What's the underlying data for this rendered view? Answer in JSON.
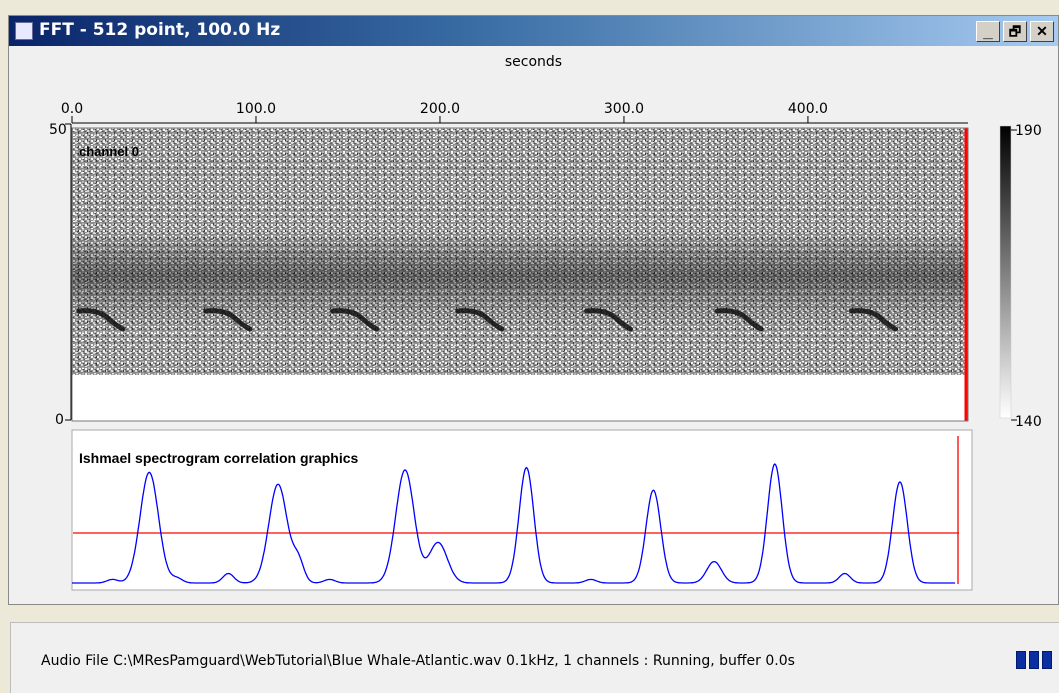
{
  "window": {
    "title": "FFT - 512 point, 100.0 Hz",
    "buttons": {
      "minimize": "_",
      "restore": "🗗",
      "close": "✕"
    }
  },
  "spectrogram": {
    "x_axis_label": "seconds",
    "x_ticks": [
      "0.0",
      "100.0",
      "200.0",
      "300.0",
      "400.0"
    ],
    "x_tick_values": [
      0,
      100,
      200,
      300,
      400
    ],
    "x_range": [
      0,
      487
    ],
    "y_ticks": [
      "50",
      "0"
    ],
    "y_range": [
      0,
      50
    ],
    "panel_label": "channel 0",
    "colorbar": {
      "max_label": "190",
      "min_label": "140",
      "max": 190,
      "min": 140
    },
    "calls_at_seconds": [
      20,
      89,
      158,
      226,
      296,
      367,
      440
    ],
    "cursor_seconds": 487,
    "colors": {
      "cursor": "#ff0000"
    }
  },
  "detector": {
    "panel_label": "Ishmael spectrogram correlation graphics",
    "threshold": 0.42,
    "colors": {
      "trace": "#0000ff",
      "threshold": "#ff0000"
    },
    "peaks": [
      {
        "t": 42,
        "h": 0.93,
        "w": 5
      },
      {
        "t": 112,
        "h": 0.83,
        "w": 5
      },
      {
        "t": 181,
        "h": 0.95,
        "w": 5
      },
      {
        "t": 199,
        "h": 0.34,
        "w": 5
      },
      {
        "t": 247,
        "h": 0.97,
        "w": 4
      },
      {
        "t": 316,
        "h": 0.78,
        "w": 4
      },
      {
        "t": 349,
        "h": 0.18,
        "w": 4
      },
      {
        "t": 382,
        "h": 1.0,
        "w": 4
      },
      {
        "t": 450,
        "h": 0.85,
        "w": 4
      },
      {
        "t": 123,
        "h": 0.18,
        "w": 3
      },
      {
        "t": 85,
        "h": 0.08,
        "w": 3
      },
      {
        "t": 420,
        "h": 0.08,
        "w": 3
      },
      {
        "t": 57,
        "h": 0.04,
        "w": 3
      },
      {
        "t": 140,
        "h": 0.03,
        "w": 3
      },
      {
        "t": 282,
        "h": 0.03,
        "w": 3
      },
      {
        "t": 22,
        "h": 0.03,
        "w": 3
      }
    ]
  },
  "status": {
    "text": "Audio File C:\\MResPamguard\\WebTutorial\\Blue Whale-Atlantic.wav 0.1kHz, 1 channels : Running, buffer 0.0s"
  }
}
